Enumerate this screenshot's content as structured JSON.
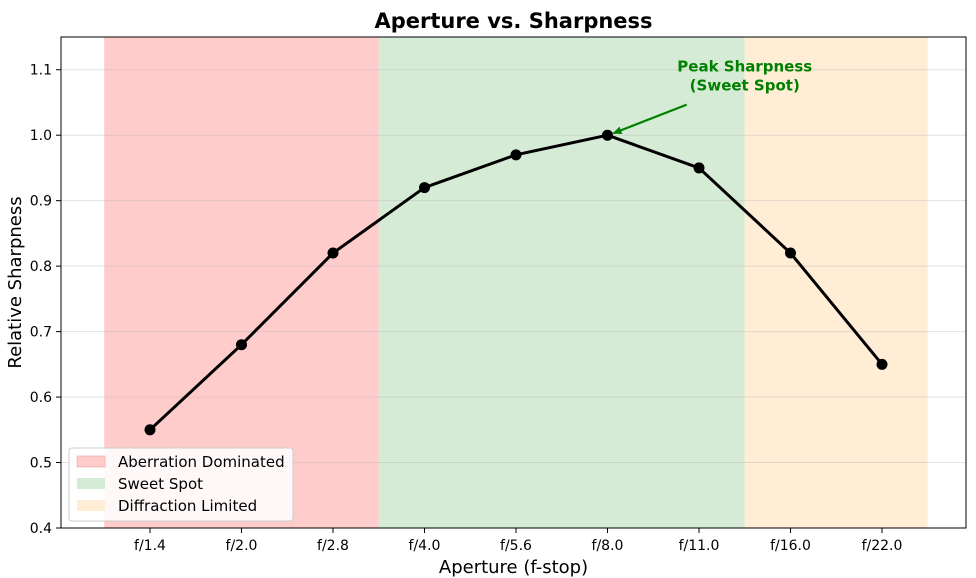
{
  "chart_data": {
    "type": "line",
    "title": "Aperture vs. Sharpness",
    "xlabel": "Aperture (f-stop)",
    "ylabel": "Relative Sharpness",
    "categories": [
      "f/1.4",
      "f/2.0",
      "f/2.8",
      "f/4.0",
      "f/5.6",
      "f/8.0",
      "f/11.0",
      "f/16.0",
      "f/22.0"
    ],
    "series": [
      {
        "values": [
          0.55,
          0.68,
          0.82,
          0.92,
          0.97,
          1.0,
          0.95,
          0.82,
          0.65
        ],
        "color": "#000000",
        "marker": "circle"
      }
    ],
    "ylim": [
      0.4,
      1.15
    ],
    "yticks": [
      0.4,
      0.5,
      0.6,
      0.7,
      0.8,
      0.9,
      1.0,
      1.1
    ],
    "grid": "y",
    "regions": [
      {
        "label": "Aberration Dominated",
        "x_start": -0.5,
        "x_end": 2.5,
        "color": "#ffcccc"
      },
      {
        "label": "Sweet Spot",
        "x_start": 2.5,
        "x_end": 6.5,
        "color": "#d6ebd6"
      },
      {
        "label": "Diffraction Limited",
        "x_start": 6.5,
        "x_end": 8.5,
        "color": "#ffedd6"
      }
    ],
    "annotations": [
      {
        "lines": [
          "Peak Sharpness",
          "(Sweet Spot)"
        ],
        "point": {
          "x": 5,
          "y": 1.0
        },
        "text_at": {
          "x": 6.5,
          "y": 1.065
        },
        "color": "#008000"
      }
    ],
    "legend": "lower-left"
  }
}
